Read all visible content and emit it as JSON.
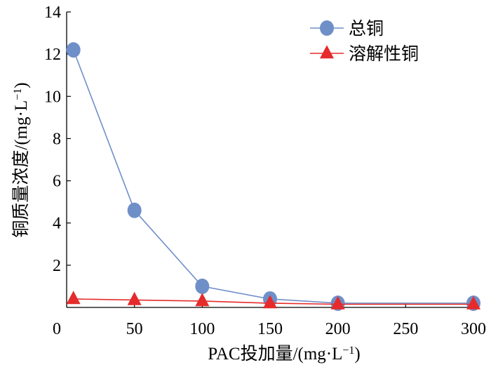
{
  "chart_data": {
    "type": "line",
    "title": "",
    "xlabel": "PAC投加量/(mg·L",
    "xlabel_sup": "−1",
    "xlabel_tail": ")",
    "ylabel": "铜质量浓度/(mg·L",
    "ylabel_sup": "−1",
    "ylabel_tail": ")",
    "xlim": [
      0,
      300
    ],
    "ylim": [
      0,
      14
    ],
    "x_ticks": [
      "0",
      "50",
      "100",
      "150",
      "200",
      "250",
      "300"
    ],
    "y_ticks": [
      "2",
      "4",
      "6",
      "8",
      "10",
      "12",
      "14"
    ],
    "grid": false,
    "legend_position": "top-right",
    "series": [
      {
        "name": "总铜",
        "marker": "circle",
        "color": "#6f8fc8",
        "line_color": "#6f8fc8",
        "x": [
          5,
          50,
          100,
          150,
          200,
          300
        ],
        "y": [
          12.2,
          4.6,
          1.0,
          0.4,
          0.2,
          0.2
        ]
      },
      {
        "name": "溶解性铜",
        "marker": "triangle",
        "color": "#e52b2b",
        "line_color": "#e52b2b",
        "x": [
          5,
          50,
          100,
          150,
          200,
          300
        ],
        "y": [
          0.4,
          0.35,
          0.3,
          0.2,
          0.15,
          0.15
        ]
      }
    ]
  }
}
